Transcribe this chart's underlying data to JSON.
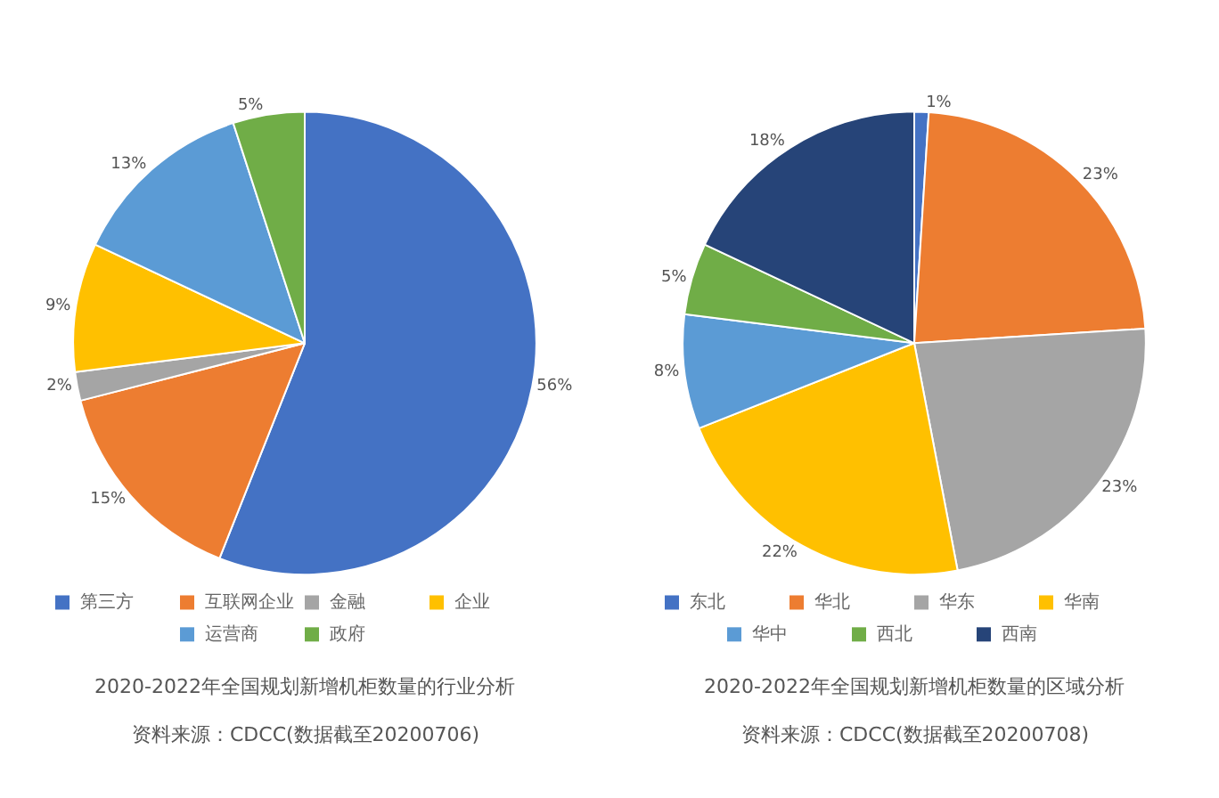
{
  "chart_data": [
    {
      "type": "pie",
      "title": "2020-2022年全国规划新增机柜数量的行业分析",
      "annotations": [
        "资料来源：CDCC(数据截至20200706)"
      ],
      "categories": [
        "第三方",
        "互联网企业",
        "金融",
        "企业",
        "运营商",
        "政府"
      ],
      "values": [
        56,
        15,
        2,
        9,
        13,
        5
      ],
      "value_labels": [
        "56%",
        "15%",
        "2%",
        "9%",
        "13%",
        "5%"
      ],
      "colors": [
        "#4472c4",
        "#ed7d31",
        "#a5a5a5",
        "#ffc000",
        "#5b9bd5",
        "#70ad47"
      ],
      "legend": "bottom"
    },
    {
      "type": "pie",
      "title": "2020-2022年全国规划新增机柜数量的区域分析",
      "annotations": [
        "资料来源：CDCC(数据截至20200708)"
      ],
      "categories": [
        "东北",
        "华北",
        "华东",
        "华南",
        "华中",
        "西北",
        "西南"
      ],
      "values": [
        1,
        23,
        23,
        22,
        8,
        5,
        18
      ],
      "value_labels": [
        "1%",
        "23%",
        "23%",
        "22%",
        "8%",
        "5%",
        "18%"
      ],
      "colors": [
        "#4472c4",
        "#ed7d31",
        "#a5a5a5",
        "#ffc000",
        "#5b9bd5",
        "#70ad47",
        "#264478"
      ],
      "legend": "bottom"
    }
  ]
}
